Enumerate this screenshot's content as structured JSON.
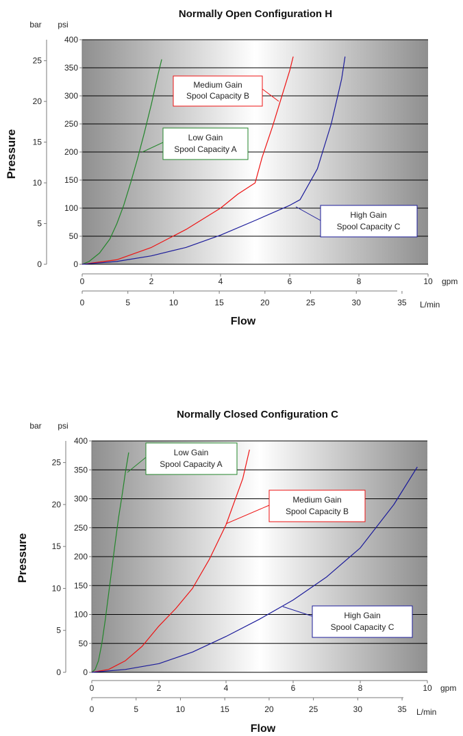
{
  "colors": {
    "low": "#22862a",
    "medium": "#ee1111",
    "high": "#1a1a9a",
    "grid": "#000000"
  },
  "chart_data": [
    {
      "type": "line",
      "title": "Normally Open Configuration H",
      "ylabel": "Pressure",
      "xlabel": "Flow",
      "y_left_unit": "bar",
      "y_right_unit": "psi",
      "x_top_unit": "gpm",
      "x_bottom_unit": "L/min",
      "psi_ticks": [
        "0",
        "50",
        "100",
        "150",
        "200",
        "250",
        "300",
        "350",
        "400"
      ],
      "bar_ticks": [
        "0",
        "5",
        "10",
        "15",
        "20",
        "25"
      ],
      "gpm_ticks": [
        "0",
        "2",
        "4",
        "6",
        "8",
        "10"
      ],
      "lmin_ticks": [
        "0",
        "5",
        "10",
        "15",
        "20",
        "25",
        "30",
        "35"
      ],
      "ylim": [
        0,
        400
      ],
      "xlim": [
        0,
        10
      ],
      "grid": true,
      "series": [
        {
          "name": "Low Gain Spool Capacity A",
          "label_lines": [
            "Low Gain",
            "Spool Capacity A"
          ],
          "x": [
            0,
            0.2,
            0.5,
            0.8,
            1.0,
            1.2,
            1.4,
            1.6,
            1.8,
            2.0,
            2.2,
            2.3
          ],
          "y": [
            0,
            5,
            20,
            45,
            72,
            105,
            145,
            188,
            235,
            285,
            340,
            365
          ]
        },
        {
          "name": "Medium Gain Spool Capacity B",
          "label_lines": [
            "Medium Gain",
            "Spool Capacity B"
          ],
          "x": [
            0,
            1.0,
            2.0,
            3.0,
            4.0,
            4.5,
            5.0,
            5.2,
            5.5,
            5.8,
            6.0,
            6.1
          ],
          "y": [
            0,
            8,
            30,
            62,
            100,
            125,
            145,
            190,
            245,
            305,
            345,
            370
          ]
        },
        {
          "name": "High Gain Spool Capacity C",
          "label_lines": [
            "High Gain",
            "Spool Capacity C"
          ],
          "x": [
            0,
            1.0,
            2.0,
            3.0,
            4.0,
            5.0,
            6.0,
            6.3,
            6.8,
            7.2,
            7.5,
            7.6
          ],
          "y": [
            0,
            5,
            15,
            30,
            52,
            78,
            105,
            115,
            170,
            250,
            330,
            370
          ]
        }
      ]
    },
    {
      "type": "line",
      "title": "Normally Closed Configuration C",
      "ylabel": "Pressure",
      "xlabel": "Flow",
      "y_left_unit": "bar",
      "y_right_unit": "psi",
      "x_top_unit": "gpm",
      "x_bottom_unit": "L/min",
      "psi_ticks": [
        "0",
        "50",
        "100",
        "150",
        "200",
        "250",
        "300",
        "350",
        "400"
      ],
      "bar_ticks": [
        "0",
        "5",
        "10",
        "15",
        "20",
        "25"
      ],
      "gpm_ticks": [
        "0",
        "2",
        "4",
        "6",
        "8",
        "10"
      ],
      "lmin_ticks": [
        "0",
        "5",
        "10",
        "15",
        "20",
        "25",
        "30",
        "35"
      ],
      "ylim": [
        0,
        400
      ],
      "xlim": [
        0,
        10
      ],
      "grid": true,
      "series": [
        {
          "name": "Low Gain Spool Capacity A",
          "label_lines": [
            "Low Gain",
            "Spool Capacity A"
          ],
          "x": [
            0,
            0.1,
            0.2,
            0.3,
            0.4,
            0.5,
            0.6,
            0.7,
            0.8,
            0.9,
            1.0,
            1.1
          ],
          "y": [
            0,
            5,
            20,
            50,
            90,
            135,
            180,
            225,
            268,
            305,
            345,
            380
          ]
        },
        {
          "name": "Medium Gain Spool Capacity B",
          "label_lines": [
            "Medium Gain",
            "Spool Capacity B"
          ],
          "x": [
            0,
            0.5,
            1.0,
            1.5,
            2.0,
            2.5,
            3.0,
            3.5,
            4.0,
            4.5,
            4.7
          ],
          "y": [
            0,
            5,
            20,
            45,
            80,
            110,
            145,
            195,
            255,
            335,
            385
          ]
        },
        {
          "name": "High Gain Spool Capacity C",
          "label_lines": [
            "High Gain",
            "Spool Capacity C"
          ],
          "x": [
            0,
            1.0,
            2.0,
            3.0,
            4.0,
            5.0,
            6.0,
            7.0,
            8.0,
            9.0,
            9.7
          ],
          "y": [
            0,
            5,
            15,
            35,
            62,
            92,
            125,
            165,
            215,
            290,
            355
          ]
        }
      ]
    }
  ]
}
